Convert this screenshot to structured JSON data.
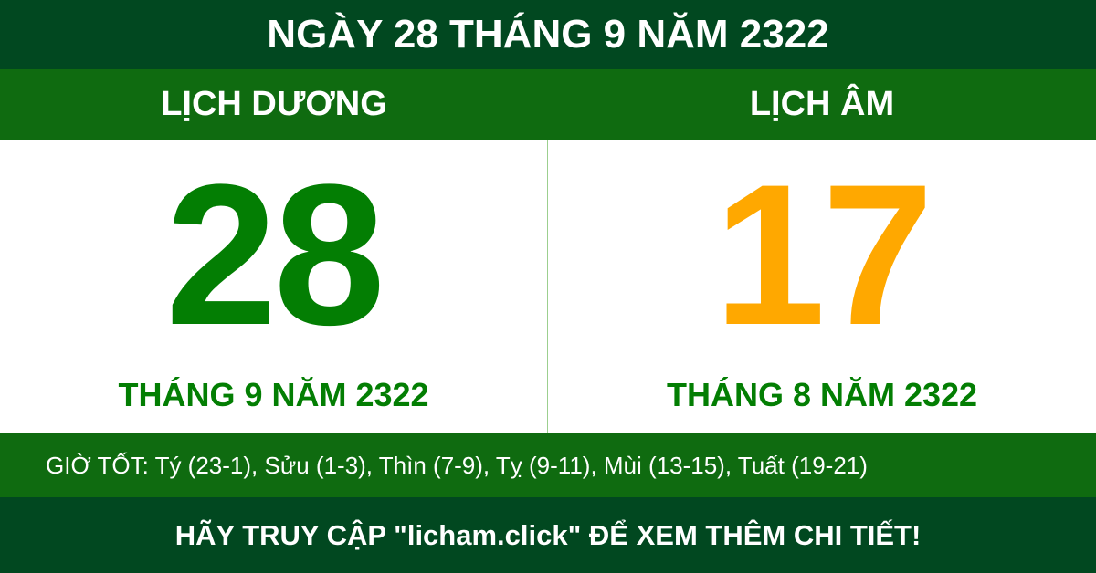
{
  "title": "NGÀY 28 THÁNG 9 NĂM 2322",
  "solar": {
    "heading": "LỊCH DƯƠNG",
    "day": "28",
    "month_year": "THÁNG 9 NĂM 2322"
  },
  "lunar": {
    "heading": "LỊCH ÂM",
    "day": "17",
    "month_year": "THÁNG 8 NĂM 2322"
  },
  "good_hours": "GIỜ TỐT: Tý (23-1), Sửu (1-3), Thìn (7-9), Tỵ (9-11), Mùi (13-15), Tuất (19-21)",
  "footer": "HÃY TRUY CẬP \"licham.click\" ĐỂ XEM THÊM CHI TIẾT!",
  "colors": {
    "dark_green": "#014820",
    "green": "#0f6b10",
    "solar_day": "#037e03",
    "lunar_day": "#ffa800"
  }
}
